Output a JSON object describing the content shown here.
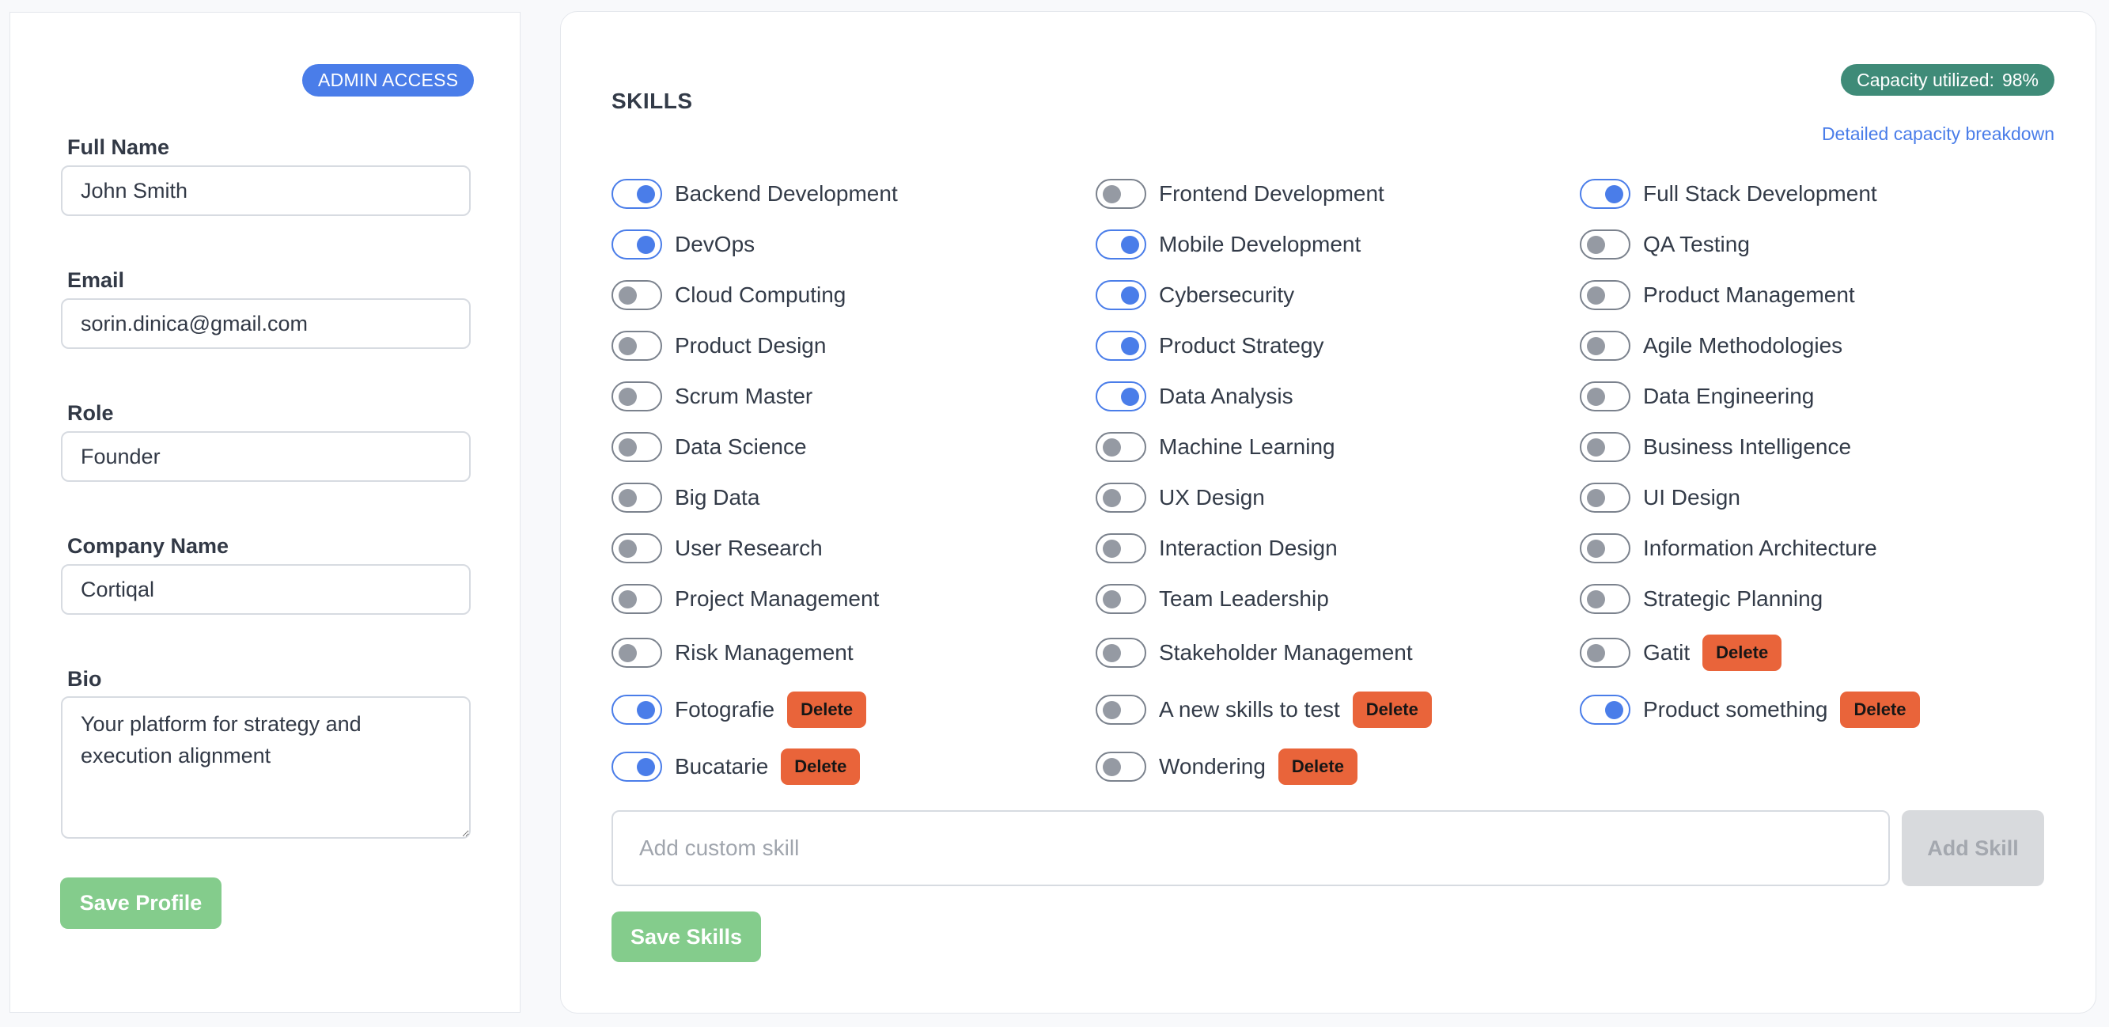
{
  "profile": {
    "badge": "ADMIN ACCESS",
    "fields": {
      "full_name": {
        "label": "Full Name",
        "value": "John Smith"
      },
      "email": {
        "label": "Email",
        "value": "sorin.dinica@gmail.com"
      },
      "role": {
        "label": "Role",
        "value": "Founder"
      },
      "company": {
        "label": "Company Name",
        "value": "Cortiqal"
      },
      "bio": {
        "label": "Bio",
        "value": "Your platform for strategy and execution alignment"
      }
    },
    "save_label": "Save Profile"
  },
  "skills": {
    "title": "SKILLS",
    "capacity": {
      "label": "Capacity utilized:",
      "value": "98%",
      "link": "Detailed capacity breakdown"
    },
    "delete_label": "Delete",
    "items": [
      {
        "label": "Backend Development",
        "enabled": true,
        "custom": false
      },
      {
        "label": "Frontend Development",
        "enabled": false,
        "custom": false
      },
      {
        "label": "Full Stack Development",
        "enabled": true,
        "custom": false
      },
      {
        "label": "DevOps",
        "enabled": true,
        "custom": false
      },
      {
        "label": "Mobile Development",
        "enabled": true,
        "custom": false
      },
      {
        "label": "QA Testing",
        "enabled": false,
        "custom": false
      },
      {
        "label": "Cloud Computing",
        "enabled": false,
        "custom": false
      },
      {
        "label": "Cybersecurity",
        "enabled": true,
        "custom": false
      },
      {
        "label": "Product Management",
        "enabled": false,
        "custom": false
      },
      {
        "label": "Product Design",
        "enabled": false,
        "custom": false
      },
      {
        "label": "Product Strategy",
        "enabled": true,
        "custom": false
      },
      {
        "label": "Agile Methodologies",
        "enabled": false,
        "custom": false
      },
      {
        "label": "Scrum Master",
        "enabled": false,
        "custom": false
      },
      {
        "label": "Data Analysis",
        "enabled": true,
        "custom": false
      },
      {
        "label": "Data Engineering",
        "enabled": false,
        "custom": false
      },
      {
        "label": "Data Science",
        "enabled": false,
        "custom": false
      },
      {
        "label": "Machine Learning",
        "enabled": false,
        "custom": false
      },
      {
        "label": "Business Intelligence",
        "enabled": false,
        "custom": false
      },
      {
        "label": "Big Data",
        "enabled": false,
        "custom": false
      },
      {
        "label": "UX Design",
        "enabled": false,
        "custom": false
      },
      {
        "label": "UI Design",
        "enabled": false,
        "custom": false
      },
      {
        "label": "User Research",
        "enabled": false,
        "custom": false
      },
      {
        "label": "Interaction Design",
        "enabled": false,
        "custom": false
      },
      {
        "label": "Information Architecture",
        "enabled": false,
        "custom": false
      },
      {
        "label": "Project Management",
        "enabled": false,
        "custom": false
      },
      {
        "label": "Team Leadership",
        "enabled": false,
        "custom": false
      },
      {
        "label": "Strategic Planning",
        "enabled": false,
        "custom": false
      },
      {
        "label": "Risk Management",
        "enabled": false,
        "custom": false
      },
      {
        "label": "Stakeholder Management",
        "enabled": false,
        "custom": false
      },
      {
        "label": "Gatit",
        "enabled": false,
        "custom": true
      },
      {
        "label": "Fotografie",
        "enabled": true,
        "custom": true
      },
      {
        "label": "A new skills to test",
        "enabled": false,
        "custom": true
      },
      {
        "label": "Product something",
        "enabled": true,
        "custom": true
      },
      {
        "label": "Bucatarie",
        "enabled": true,
        "custom": true
      },
      {
        "label": "Wondering",
        "enabled": false,
        "custom": true
      }
    ],
    "add": {
      "placeholder": "Add custom skill",
      "button_label": "Add Skill"
    },
    "save_label": "Save Skills"
  }
}
